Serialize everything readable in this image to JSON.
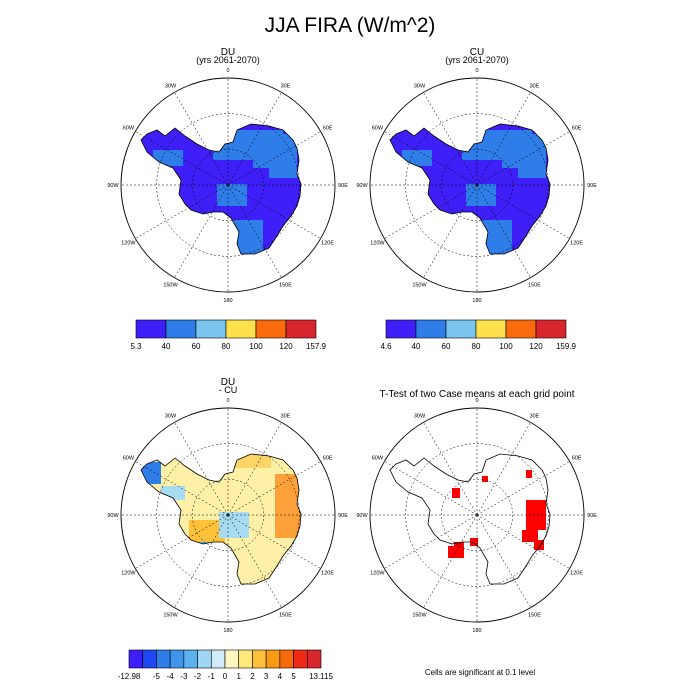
{
  "title": "JJA FIRA (W/m^2)",
  "chart_data": [
    {
      "type": "polar-map",
      "title": "DU",
      "subtitle": "(yrs 2061-2070)",
      "longitude_labels": [
        "0",
        "30E",
        "60E",
        "90E",
        "120E",
        "150E",
        "180",
        "150W",
        "120W",
        "90W",
        "60W",
        "30W"
      ],
      "colorbar": {
        "colors": [
          "#3f1ff7",
          "#2f7de8",
          "#79c5ee",
          "#fde14c",
          "#f96b0c",
          "#d7262d"
        ],
        "tick_labels": [
          "5.3",
          "40",
          "60",
          "80",
          "100",
          "120",
          "157.9"
        ]
      },
      "colors": {
        "dominant": "#3f1ff7",
        "secondary": "#2f7de8"
      }
    },
    {
      "type": "polar-map",
      "title": "CU",
      "subtitle": "(yrs 2061-2070)",
      "longitude_labels": [
        "0",
        "30E",
        "60E",
        "90E",
        "120E",
        "150E",
        "180",
        "150W",
        "120W",
        "90W",
        "60W",
        "30W"
      ],
      "colorbar": {
        "colors": [
          "#3f1ff7",
          "#2f7de8",
          "#79c5ee",
          "#fde14c",
          "#f96b0c",
          "#d7262d"
        ],
        "tick_labels": [
          "4.6",
          "40",
          "60",
          "80",
          "100",
          "120",
          "159.9"
        ]
      },
      "colors": {
        "dominant": "#3f1ff7",
        "secondary": "#2f7de8"
      }
    },
    {
      "type": "polar-map",
      "title": "DU",
      "subtitle": "- CU",
      "longitude_labels": [
        "0",
        "30E",
        "60E",
        "90E",
        "120E",
        "150E",
        "180",
        "150W",
        "120W",
        "90W",
        "60W",
        "30W"
      ],
      "colorbar": {
        "colors": [
          "#3f1ff7",
          "#2048f2",
          "#2f7de8",
          "#3f95ea",
          "#5cb2ee",
          "#9ed6f3",
          "#d1ecf9",
          "#fff6c0",
          "#fee97a",
          "#fec23a",
          "#f99a16",
          "#f56a0c",
          "#ee2b12",
          "#d7262d"
        ],
        "tick_labels": [
          "-12.98",
          "-5",
          "-4",
          "-3",
          "-2",
          "-1",
          "0",
          "1",
          "2",
          "3",
          "4",
          "5",
          "13.115"
        ]
      },
      "colors": {
        "land_fill": "#fff0a8",
        "warm_edge": "#fca13a",
        "cool_patches": "#a8dcf2"
      }
    },
    {
      "type": "polar-map",
      "title": "T-Test of two Case means at each grid point",
      "longitude_labels": [
        "0",
        "30E",
        "60E",
        "90E",
        "120E",
        "150E",
        "180",
        "150W",
        "120W",
        "90W",
        "60W",
        "30W"
      ],
      "colors": {
        "significant": "#ff0000"
      },
      "note": "Cells are significant at 0.1 level"
    }
  ]
}
